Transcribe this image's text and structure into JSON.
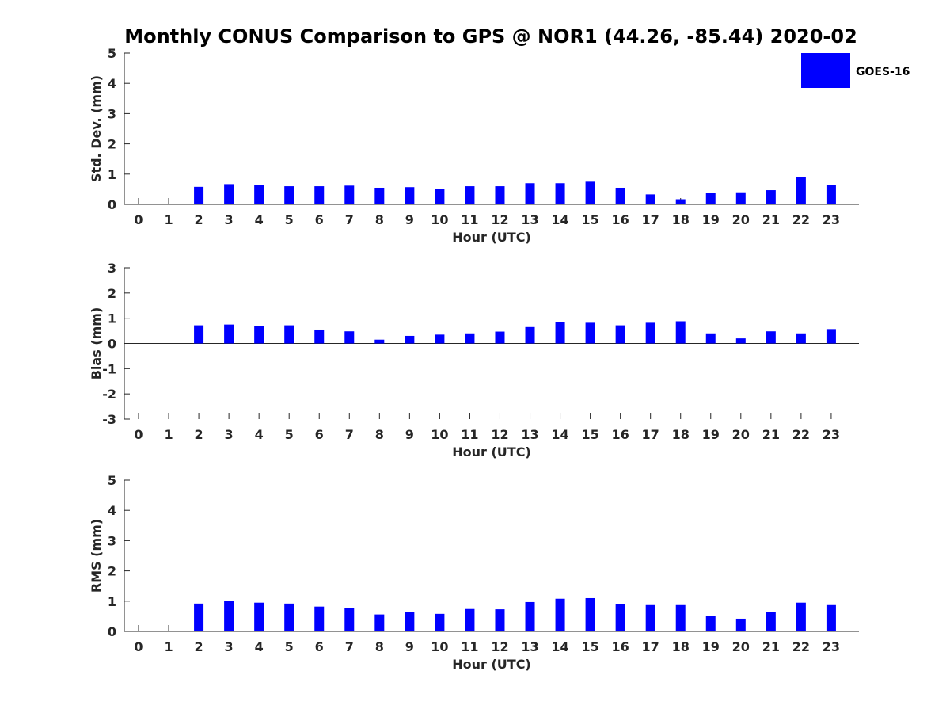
{
  "title": "Monthly CONUS Comparison to GPS @ NOR1 (44.26, -85.44) 2020-02",
  "legend": {
    "label": "GOES-16",
    "color": "#0000ff",
    "position": "top-right"
  },
  "chart_data": [
    {
      "type": "bar",
      "name": "std-dev",
      "xlabel": "Hour (UTC)",
      "ylabel": "Std. Dev. (mm)",
      "ylim": [
        0,
        5
      ],
      "yticks": [
        "0",
        "1",
        "2",
        "3",
        "4",
        "5"
      ],
      "categories": [
        "0",
        "1",
        "2",
        "3",
        "4",
        "5",
        "6",
        "7",
        "8",
        "9",
        "10",
        "11",
        "12",
        "13",
        "14",
        "15",
        "16",
        "17",
        "18",
        "19",
        "20",
        "21",
        "22",
        "23"
      ],
      "series": [
        {
          "name": "GOES-16",
          "values": [
            null,
            null,
            0.58,
            0.67,
            0.64,
            0.6,
            0.6,
            0.62,
            0.55,
            0.57,
            0.5,
            0.6,
            0.6,
            0.7,
            0.7,
            0.75,
            0.55,
            0.33,
            0.17,
            0.37,
            0.4,
            0.47,
            0.9,
            0.65
          ]
        }
      ]
    },
    {
      "type": "bar",
      "name": "bias",
      "xlabel": "Hour (UTC)",
      "ylabel": "Bias (mm)",
      "ylim": [
        -3,
        3
      ],
      "yticks": [
        "-3",
        "-2",
        "-1",
        "0",
        "1",
        "2",
        "3"
      ],
      "categories": [
        "0",
        "1",
        "2",
        "3",
        "4",
        "5",
        "6",
        "7",
        "8",
        "9",
        "10",
        "11",
        "12",
        "13",
        "14",
        "15",
        "16",
        "17",
        "18",
        "19",
        "20",
        "21",
        "22",
        "23"
      ],
      "series": [
        {
          "name": "GOES-16",
          "values": [
            null,
            null,
            0.72,
            0.75,
            0.7,
            0.72,
            0.55,
            0.48,
            0.15,
            0.3,
            0.35,
            0.4,
            0.47,
            0.65,
            0.85,
            0.82,
            0.72,
            0.82,
            0.88,
            0.4,
            0.2,
            0.48,
            0.4,
            0.57
          ]
        }
      ]
    },
    {
      "type": "bar",
      "name": "rms",
      "xlabel": "Hour (UTC)",
      "ylabel": "RMS (mm)",
      "ylim": [
        0,
        5
      ],
      "yticks": [
        "0",
        "1",
        "2",
        "3",
        "4",
        "5"
      ],
      "categories": [
        "0",
        "1",
        "2",
        "3",
        "4",
        "5",
        "6",
        "7",
        "8",
        "9",
        "10",
        "11",
        "12",
        "13",
        "14",
        "15",
        "16",
        "17",
        "18",
        "19",
        "20",
        "21",
        "22",
        "23"
      ],
      "series": [
        {
          "name": "GOES-16",
          "values": [
            null,
            null,
            0.92,
            1.0,
            0.95,
            0.92,
            0.82,
            0.76,
            0.56,
            0.63,
            0.58,
            0.74,
            0.73,
            0.97,
            1.08,
            1.1,
            0.9,
            0.87,
            0.87,
            0.52,
            0.42,
            0.65,
            0.95,
            0.87
          ]
        }
      ]
    }
  ]
}
